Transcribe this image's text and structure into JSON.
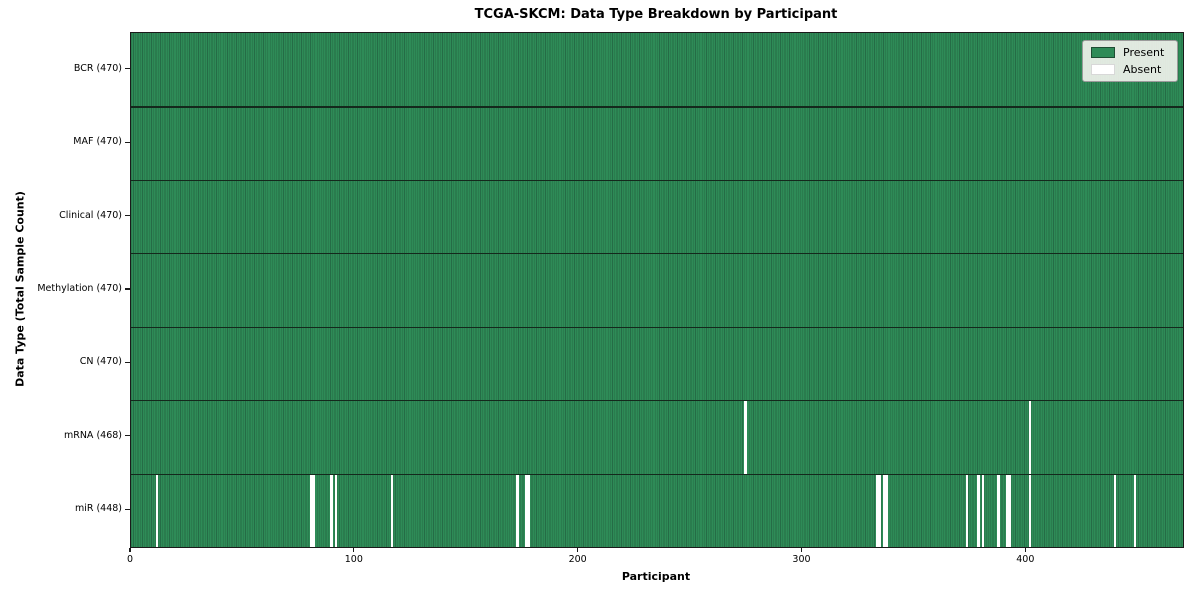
{
  "chart_data": {
    "type": "heatmap",
    "title": "TCGA-SKCM: Data Type Breakdown by Participant",
    "xlabel": "Participant",
    "ylabel": "Data Type (Total Sample Count)",
    "n_participants": 470,
    "x_ticks": [
      0,
      100,
      200,
      300,
      400
    ],
    "x_range": [
      0,
      470
    ],
    "grid": false,
    "legend_position": "upper right",
    "rows": [
      {
        "label": "BCR (470)",
        "data_type": "BCR",
        "total": 470,
        "absent_participants": []
      },
      {
        "label": "MAF (470)",
        "data_type": "MAF",
        "total": 470,
        "absent_participants": []
      },
      {
        "label": "Clinical (470)",
        "data_type": "Clinical",
        "total": 470,
        "absent_participants": []
      },
      {
        "label": "Methylation (470)",
        "data_type": "Methylation",
        "total": 470,
        "absent_participants": []
      },
      {
        "label": "CN (470)",
        "data_type": "CN",
        "total": 470,
        "absent_participants": []
      },
      {
        "label": "mRNA (468)",
        "data_type": "mRNA",
        "total": 468,
        "absent_participants": [
          274,
          401
        ]
      },
      {
        "label": "miR (448)",
        "data_type": "miR",
        "total": 448,
        "absent_participants": [
          11,
          80,
          81,
          89,
          91,
          116,
          172,
          176,
          177,
          333,
          334,
          336,
          337,
          373,
          378,
          380,
          387,
          391,
          392,
          401,
          439,
          448
        ]
      }
    ],
    "legend": [
      {
        "label": "Present",
        "color": "#2e8b57"
      },
      {
        "label": "Absent",
        "color": "#ffffff"
      }
    ],
    "colors": {
      "present": "#2e8b57",
      "present_edge": "#256c46",
      "absent": "#ffffff",
      "row_separator": "#14281c",
      "spine": "#1a1a1a",
      "legend_background": "#f0f2eb"
    }
  }
}
